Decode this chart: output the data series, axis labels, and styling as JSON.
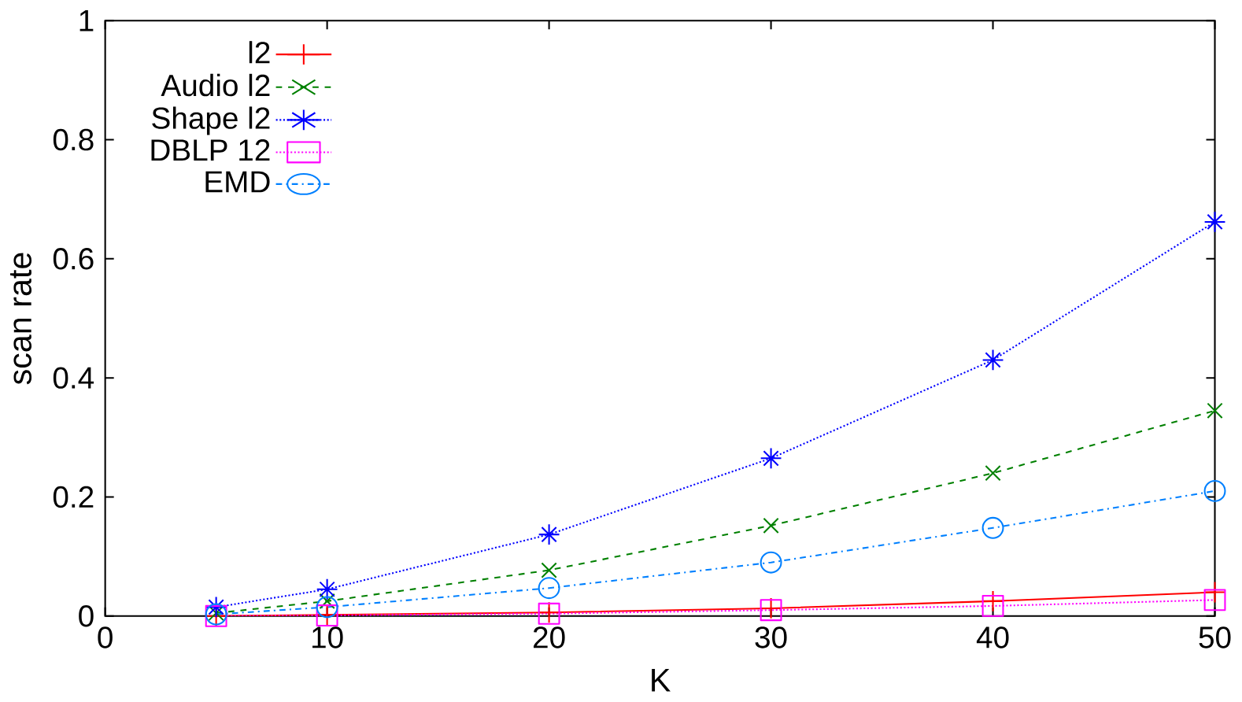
{
  "chart_data": {
    "type": "line",
    "xlabel": "K",
    "ylabel": "scan rate",
    "x": [
      5,
      10,
      20,
      30,
      40,
      50
    ],
    "series": [
      {
        "name": "l2",
        "color": "#ff0000",
        "marker": "plus",
        "line_style": "solid",
        "values": [
          0,
          0.002,
          0.006,
          0.013,
          0.025,
          0.04
        ]
      },
      {
        "name": "Audio l2",
        "color": "#008000",
        "marker": "cross",
        "line_style": "dashed",
        "values": [
          0.005,
          0.025,
          0.077,
          0.152,
          0.24,
          0.345
        ]
      },
      {
        "name": "Shape l2",
        "color": "#0000ff",
        "marker": "cross",
        "line_style": "dotted",
        "values": [
          0.015,
          0.045,
          0.137,
          0.265,
          0.43,
          0.662
        ]
      },
      {
        "name": "DBLP 12",
        "color": "#ff00ff",
        "marker": "square",
        "line_style": "dotted",
        "values": [
          0,
          0.001,
          0.004,
          0.01,
          0.017,
          0.027
        ]
      },
      {
        "name": "EMD",
        "color": "#0080ff",
        "marker": "circle",
        "line_style": "dashdot",
        "values": [
          0.003,
          0.015,
          0.047,
          0.09,
          0.148,
          0.21
        ]
      }
    ],
    "xlim": [
      0,
      50
    ],
    "ylim": [
      0,
      1
    ],
    "xticks": [
      0,
      10,
      20,
      30,
      40,
      50
    ],
    "yticks": [
      0,
      0.2,
      0.4,
      0.6,
      0.8,
      1
    ],
    "grid": false,
    "legend": "top left"
  }
}
